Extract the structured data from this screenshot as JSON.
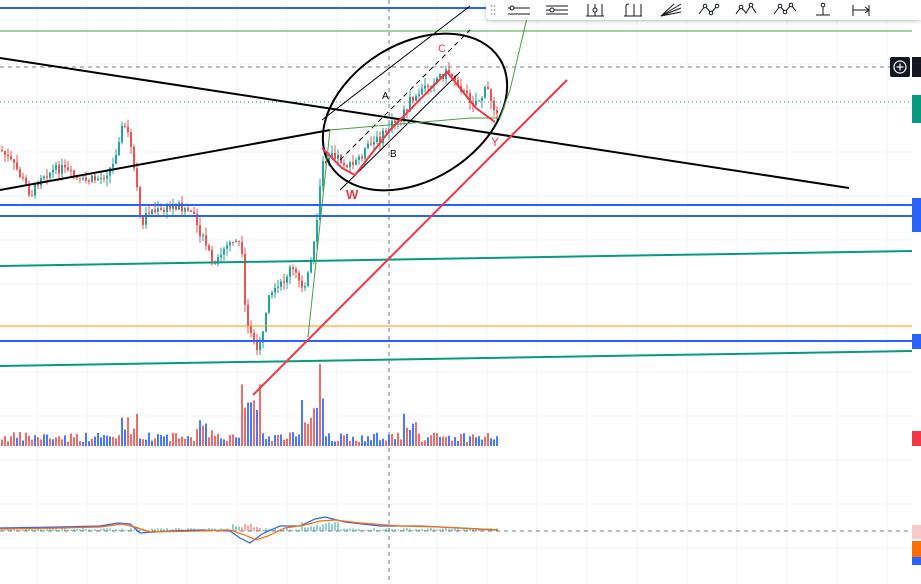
{
  "toolbar": {
    "tools": [
      {
        "icon": "horizontal-ray-icon"
      },
      {
        "icon": "horizontal-lines-icon"
      },
      {
        "icon": "pitchfork-icon"
      },
      {
        "icon": "schiff-pitchfork-icon"
      },
      {
        "icon": "fib-fan-icon"
      },
      {
        "icon": "xabcd-pattern-icon"
      },
      {
        "icon": "head-shoulders-pattern-icon"
      },
      {
        "icon": "elliott-wave-icon"
      },
      {
        "icon": "long-position-icon"
      },
      {
        "icon": "date-range-icon"
      }
    ]
  },
  "colors": {
    "candle_up": "#26a69a",
    "candle_down": "#ef5350",
    "level_blue": "#2962ff",
    "trend_green": "#089981",
    "trend_red": "#f23645",
    "macd_line": "#2962ff",
    "signal_line": "#ff6d00",
    "drawing_black": "#000000"
  },
  "annotations": {
    "labels": [
      "A",
      "B",
      "C",
      "W",
      "Y"
    ]
  },
  "chart_data": {
    "type": "candlestick",
    "title": "",
    "xlabel": "",
    "ylabel": "",
    "grid": true,
    "series": [
      {
        "name": "",
        "kind": "price"
      },
      {
        "name": "",
        "kind": "volume"
      },
      {
        "name": "",
        "kind": "macd"
      }
    ]
  }
}
